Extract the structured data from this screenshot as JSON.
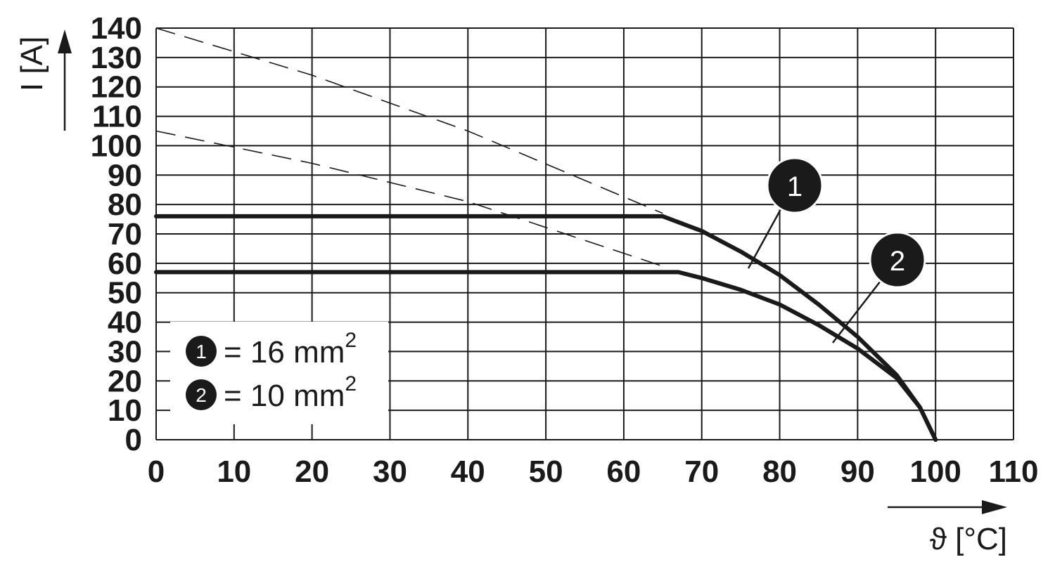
{
  "chart_data": {
    "type": "line",
    "xlabel": "ϑ [°C]",
    "ylabel": "I [A]",
    "xlim": [
      0,
      110
    ],
    "ylim": [
      0,
      140
    ],
    "x_ticks": [
      0,
      10,
      20,
      30,
      40,
      50,
      60,
      70,
      80,
      90,
      100,
      110
    ],
    "y_ticks": [
      0,
      10,
      20,
      30,
      40,
      50,
      60,
      70,
      80,
      90,
      100,
      110,
      120,
      130,
      140
    ],
    "grid": true,
    "legend": {
      "placement": "bottom-left",
      "entries": [
        {
          "badge": "1",
          "text": "= 16 mm",
          "sup": "2"
        },
        {
          "badge": "2",
          "text": "= 10 mm",
          "sup": "2"
        }
      ]
    },
    "series": [
      {
        "badge": "1",
        "x": [
          0,
          65,
          70,
          75,
          80,
          85,
          90,
          95,
          98,
          100
        ],
        "y": [
          76,
          76,
          71,
          64,
          56,
          46,
          35,
          22,
          11,
          0
        ]
      },
      {
        "badge": "2",
        "x": [
          0,
          67,
          70,
          75,
          80,
          85,
          90,
          95,
          98,
          100
        ],
        "y": [
          57,
          57,
          55,
          51,
          46,
          39,
          31,
          21,
          11,
          0
        ]
      }
    ],
    "extrapolations": [
      {
        "series": "1",
        "x": [
          0,
          20,
          40,
          65
        ],
        "y": [
          140,
          124,
          105,
          77
        ]
      },
      {
        "series": "2",
        "x": [
          0,
          20,
          40,
          65
        ],
        "y": [
          105,
          94,
          81,
          59
        ]
      }
    ]
  }
}
